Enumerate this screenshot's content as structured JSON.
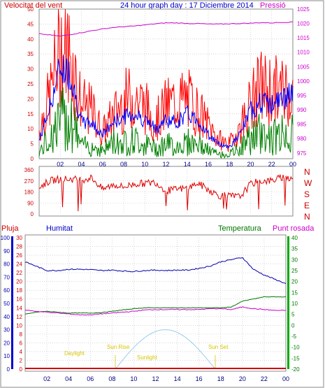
{
  "header": {
    "left_label": "Velocitat del vent",
    "title": "24 hour graph day : 17 Diciembre 2014",
    "right_label": "Pressió"
  },
  "colors": {
    "border": "#8a8a8a",
    "grid": "#bdbdbd",
    "wind": "#ff0000",
    "avg_wind": "#0000ff",
    "low_wind": "#008000",
    "pressure": "#cc00cc",
    "direction": "#dd0000",
    "humidity": "#0000aa",
    "temperature": "#007700",
    "dewpoint": "#cc00cc",
    "rain": "#cc0000",
    "solar": "#99ccee",
    "sun_text": "#d8c400",
    "rain_axis_bar": "#0000cc",
    "temp_axis_bar": "#00aa00"
  },
  "bottom_labels": {
    "pluja": "Pluja",
    "humitat": "Humitat",
    "temperatura": "Temperatura",
    "punt_rosada": "Punt rosada"
  },
  "sun_labels": {
    "daylight": "Daylight",
    "sun_rise": "Sun Rise",
    "sunlight": "Sunlight",
    "sun_set": "Sun Set"
  },
  "chart_data": [
    {
      "type": "line",
      "x_ticks": [
        "02",
        "04",
        "06",
        "08",
        "10",
        "12",
        "14",
        "16",
        "18",
        "20",
        "22",
        "00"
      ],
      "left_axis": {
        "ticks": [
          "0",
          "5",
          "10",
          "15",
          "20",
          "25",
          "30",
          "35",
          "40",
          "45",
          "50"
        ],
        "ylim": [
          0,
          50
        ]
      },
      "right_axis": {
        "ticks": [
          "975",
          "980",
          "985",
          "990",
          "995",
          "1000",
          "1005",
          "1010",
          "1015",
          "1020",
          "1025"
        ],
        "ylim": [
          973,
          1025
        ]
      },
      "series": [
        {
          "key": "pressure",
          "values": [
            1016.4,
            1016.0,
            1015.6,
            1016.2,
            1016.8,
            1017.5,
            1018.1,
            1018.6,
            1018.9,
            1019.1,
            1019.5,
            1019.9,
            1020.2,
            1020.2,
            1020.0,
            1020.0,
            1019.8,
            1019.8,
            1019.9,
            1020.0,
            1020.1,
            1020.3,
            1020.2,
            1020.4,
            1020.5
          ]
        },
        {
          "key": "wind",
          "values": [
            12,
            26,
            47,
            43,
            22,
            20,
            11,
            18,
            24,
            26,
            22,
            15,
            22,
            24,
            25,
            20,
            14,
            8,
            6,
            13,
            23,
            30,
            28,
            28,
            30
          ]
        },
        {
          "key": "avg_wind",
          "values": [
            6,
            17,
            31,
            28,
            12,
            12,
            8,
            12,
            14,
            15,
            13,
            10,
            13,
            12,
            15,
            13,
            8,
            5,
            4,
            8,
            16,
            19,
            18,
            20,
            22
          ]
        },
        {
          "key": "low_wind",
          "values": [
            3,
            10,
            18,
            20,
            6,
            6,
            4,
            8,
            8,
            9,
            7,
            5,
            7,
            6,
            8,
            7,
            4,
            2,
            2,
            5,
            10,
            12,
            10,
            12,
            12
          ]
        }
      ]
    },
    {
      "type": "line",
      "x_ticks": [
        "02",
        "04",
        "06",
        "08",
        "10",
        "12",
        "14",
        "16",
        "18",
        "20",
        "22",
        "00"
      ],
      "left_axis": {
        "ticks": [
          "0",
          "90",
          "180",
          "270",
          "360"
        ],
        "ylim": [
          0,
          360
        ]
      },
      "right_axis_letters": [
        "N",
        "W",
        "S",
        "E",
        "N"
      ],
      "series": [
        {
          "key": "direction",
          "values": [
            220,
            270,
            285,
            285,
            280,
            295,
            200,
            240,
            220,
            245,
            250,
            260,
            190,
            200,
            210,
            250,
            200,
            150,
            145,
            140,
            245,
            270,
            270,
            300,
            295
          ]
        }
      ]
    },
    {
      "type": "line",
      "x_ticks": [
        "02",
        "04",
        "06",
        "08",
        "10",
        "12",
        "14",
        "16",
        "18",
        "20",
        "22",
        "00"
      ],
      "axes": {
        "rain": {
          "ticks": [
            "0",
            "10",
            "20",
            "30",
            "40",
            "50",
            "60",
            "70",
            "80",
            "90",
            "100"
          ],
          "ylim": [
            0,
            100
          ]
        },
        "humidity": {
          "ticks": [
            "0",
            "2",
            "4",
            "6",
            "8",
            "10",
            "12",
            "14",
            "16",
            "18",
            "20",
            "22",
            "24",
            "26",
            "28",
            "30"
          ],
          "ylim": [
            0,
            30
          ]
        },
        "temperature": {
          "ticks": [
            "-20",
            "-15",
            "-10",
            "-5",
            "0",
            "5",
            "10",
            "15",
            "20",
            "25",
            "30",
            "35",
            "40"
          ],
          "ylim": [
            -20,
            40
          ]
        }
      },
      "series": [
        {
          "key": "humidity",
          "values": [
            24.5,
            23.5,
            22.5,
            22.5,
            22.8,
            22.8,
            22.7,
            22.5,
            22.6,
            22.4,
            22.3,
            22.5,
            22.6,
            22.5,
            22.6,
            22.6,
            23.0,
            23.5,
            24.5,
            25.0,
            25.5,
            22.8,
            21.5,
            20.5,
            19.5
          ]
        },
        {
          "key": "temperature",
          "values": [
            12.5,
            13.0,
            13.2,
            13.0,
            12.8,
            12.8,
            12.8,
            12.9,
            13.2,
            13.5,
            13.8,
            14.0,
            14.0,
            14.0,
            14.0,
            14.0,
            14.0,
            14.0,
            14.0,
            14.2,
            15.5,
            16.0,
            16.5,
            16.5,
            16.5
          ]
        },
        {
          "key": "dewpoint",
          "values": [
            13.5,
            13.2,
            13.0,
            12.8,
            12.6,
            12.4,
            12.4,
            12.6,
            12.8,
            13.0,
            13.2,
            13.5,
            13.6,
            13.6,
            13.6,
            13.6,
            13.6,
            13.8,
            13.8,
            13.6,
            14.2,
            13.8,
            13.6,
            13.4,
            13.4
          ]
        },
        {
          "key": "rain",
          "values": [
            0,
            0,
            0,
            0,
            0,
            0,
            0,
            0,
            0,
            0,
            0,
            0,
            0,
            0,
            0,
            0,
            0,
            0,
            0,
            0,
            0,
            0,
            0,
            0,
            0
          ]
        }
      ],
      "solar": {
        "sun_rise": 8.3,
        "sun_set": 17.5,
        "peak": 9
      }
    }
  ]
}
